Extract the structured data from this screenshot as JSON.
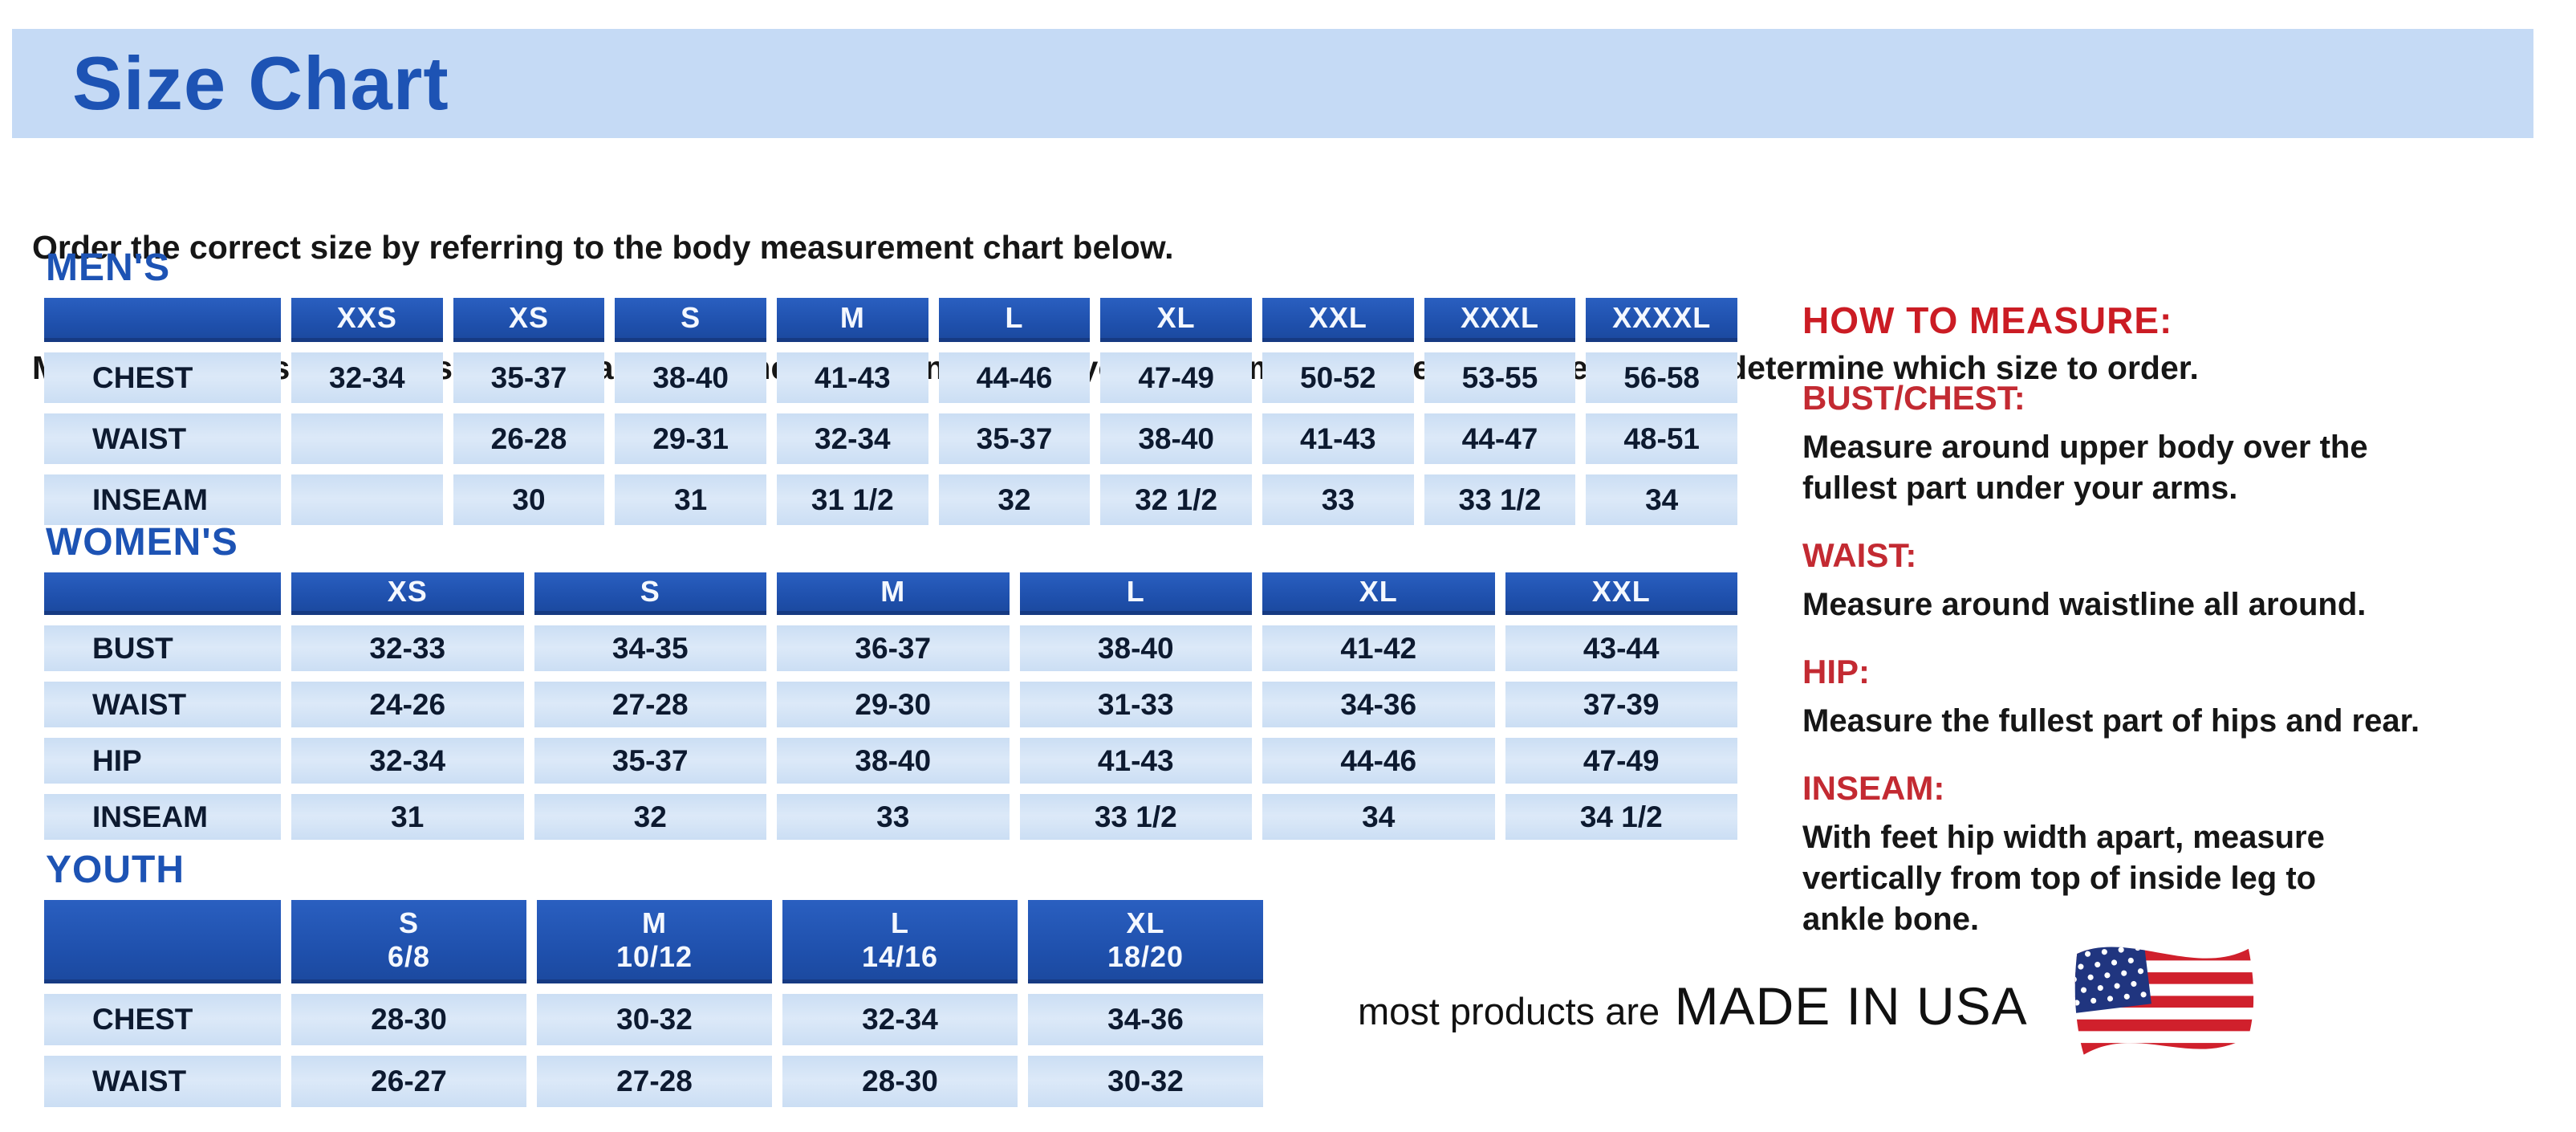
{
  "header": {
    "title": "Size Chart"
  },
  "intro": {
    "line1": "Order the correct size by referring to the body measurement chart below.",
    "line2": "Measurements shown on size chart are body measurements.  Find your body measurements on the chart to determine which size to order."
  },
  "colors": {
    "accent_blue": "#1d53b4",
    "table_header_blue": "#1e4fab",
    "cell_light_blue": "#cbdef4",
    "title_bar_blue": "#c5daf5",
    "heading_red": "#cb1c24"
  },
  "tables": [
    {
      "id": "mens",
      "section_label": "MEN'S",
      "columns": [
        "XXS",
        "XS",
        "S",
        "M",
        "L",
        "XL",
        "XXL",
        "XXXL",
        "XXXXL"
      ],
      "rows": [
        {
          "label": "CHEST",
          "values": [
            "32-34",
            "35-37",
            "38-40",
            "41-43",
            "44-46",
            "47-49",
            "50-52",
            "53-55",
            "56-58"
          ]
        },
        {
          "label": "WAIST",
          "values": [
            "",
            "26-28",
            "29-31",
            "32-34",
            "35-37",
            "38-40",
            "41-43",
            "44-47",
            "48-51"
          ]
        },
        {
          "label": "INSEAM",
          "values": [
            "",
            "30",
            "31",
            "31 1/2",
            "32",
            "32 1/2",
            "33",
            "33 1/2",
            "34"
          ]
        }
      ]
    },
    {
      "id": "womens",
      "section_label": "WOMEN'S",
      "columns": [
        "XS",
        "S",
        "M",
        "L",
        "XL",
        "XXL"
      ],
      "rows": [
        {
          "label": "BUST",
          "values": [
            "32-33",
            "34-35",
            "36-37",
            "38-40",
            "41-42",
            "43-44"
          ]
        },
        {
          "label": "WAIST",
          "values": [
            "24-26",
            "27-28",
            "29-30",
            "31-33",
            "34-36",
            "37-39"
          ]
        },
        {
          "label": "HIP",
          "values": [
            "32-34",
            "35-37",
            "38-40",
            "41-43",
            "44-46",
            "47-49"
          ]
        },
        {
          "label": "INSEAM",
          "values": [
            "31",
            "32",
            "33",
            "33 1/2",
            "34",
            "34 1/2"
          ]
        }
      ]
    },
    {
      "id": "youth",
      "section_label": "YOUTH",
      "columns": [
        "S\n6/8",
        "M\n10/12",
        "L\n14/16",
        "XL\n18/20"
      ],
      "rows": [
        {
          "label": "CHEST",
          "values": [
            "28-30",
            "30-32",
            "32-34",
            "34-36"
          ]
        },
        {
          "label": "WAIST",
          "values": [
            "26-27",
            "27-28",
            "28-30",
            "30-32"
          ]
        }
      ]
    }
  ],
  "how_to_measure": {
    "title": "HOW TO MEASURE:",
    "sections": [
      {
        "label": "BUST/CHEST:",
        "text": "Measure around upper body over the\nfullest part under your arms."
      },
      {
        "label": "WAIST:",
        "text": "Measure around waistline all around."
      },
      {
        "label": "HIP:",
        "text": "Measure the fullest part of hips and rear."
      },
      {
        "label": "INSEAM:",
        "text": "With feet hip width apart, measure\nvertically from top of inside leg to\nankle bone."
      }
    ]
  },
  "footer": {
    "prefix": "most products are",
    "emphasis": "MADE IN USA",
    "flag_icon": "us-flag-icon"
  }
}
